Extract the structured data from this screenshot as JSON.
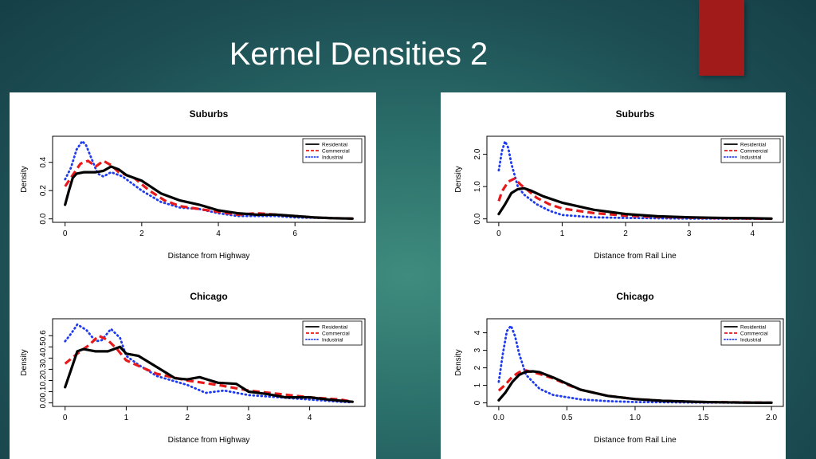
{
  "slide": {
    "title": "Kernel Densities 2"
  },
  "colors": {
    "residential": "#000000",
    "commercial": "#e8191a",
    "industrial": "#1f3bf0",
    "accent": "#a11b1b"
  },
  "chart_data": [
    {
      "type": "line",
      "title": "Suburbs",
      "xlabel": "Distance from Highway",
      "ylabel": "Density",
      "xlim": [
        0,
        7.5
      ],
      "ylim": [
        0,
        0.56
      ],
      "xticks": [
        0,
        2,
        4,
        6
      ],
      "xtick_labels": [
        "0",
        "2",
        "4",
        "6"
      ],
      "yticks": [
        0,
        0.2,
        0.4
      ],
      "ytick_labels": [
        "0.0",
        "0.2",
        "0.4"
      ],
      "legend": "top-right",
      "series": [
        {
          "name": "Residential",
          "style": "solid",
          "x": [
            0,
            0.1,
            0.2,
            0.3,
            0.5,
            0.8,
            1.0,
            1.2,
            1.4,
            1.6,
            2.0,
            2.5,
            3.0,
            3.5,
            4.0,
            4.5,
            5.0,
            5.5,
            6.0,
            6.5,
            7.0,
            7.5
          ],
          "y": [
            0.1,
            0.2,
            0.29,
            0.32,
            0.33,
            0.33,
            0.34,
            0.37,
            0.35,
            0.31,
            0.27,
            0.18,
            0.13,
            0.1,
            0.06,
            0.04,
            0.03,
            0.03,
            0.02,
            0.01,
            0.005,
            0.002
          ]
        },
        {
          "name": "Commercial",
          "style": "dashed",
          "x": [
            0,
            0.2,
            0.4,
            0.6,
            0.8,
            1.0,
            1.2,
            1.4,
            1.8,
            2.2,
            2.6,
            3.0,
            3.5,
            4.0,
            4.5,
            5.0,
            5.5,
            6.0,
            6.5,
            7.0,
            7.5
          ],
          "y": [
            0.23,
            0.31,
            0.39,
            0.41,
            0.37,
            0.41,
            0.38,
            0.33,
            0.29,
            0.2,
            0.13,
            0.09,
            0.07,
            0.05,
            0.03,
            0.04,
            0.03,
            0.02,
            0.01,
            0.005,
            0.002
          ]
        },
        {
          "name": "Industrial",
          "style": "dotted",
          "x": [
            0,
            0.15,
            0.3,
            0.45,
            0.55,
            0.7,
            0.85,
            1.0,
            1.2,
            1.5,
            2.0,
            2.5,
            3.0,
            3.5,
            4.0,
            4.5,
            5.0,
            5.5,
            6.0,
            7.0,
            7.5
          ],
          "y": [
            0.28,
            0.36,
            0.49,
            0.55,
            0.52,
            0.42,
            0.32,
            0.3,
            0.33,
            0.3,
            0.2,
            0.12,
            0.08,
            0.07,
            0.04,
            0.02,
            0.02,
            0.02,
            0.01,
            0.005,
            0.002
          ]
        }
      ]
    },
    {
      "type": "line",
      "title": "Suburbs",
      "xlabel": "Distance from Rail Line",
      "ylabel": "Density",
      "xlim": [
        0,
        4.3
      ],
      "ylim": [
        0,
        2.45
      ],
      "xticks": [
        0,
        1,
        2,
        3,
        4
      ],
      "xtick_labels": [
        "0",
        "1",
        "2",
        "3",
        "4"
      ],
      "yticks": [
        0,
        1,
        2
      ],
      "ytick_labels": [
        "0.0",
        "1.0",
        "2.0"
      ],
      "legend": "top-right",
      "series": [
        {
          "name": "Residential",
          "style": "solid",
          "x": [
            0,
            0.1,
            0.2,
            0.3,
            0.4,
            0.5,
            0.7,
            1.0,
            1.5,
            2.0,
            2.5,
            3.0,
            3.5,
            4.0,
            4.3
          ],
          "y": [
            0.15,
            0.45,
            0.8,
            0.92,
            0.95,
            0.88,
            0.7,
            0.5,
            0.28,
            0.15,
            0.08,
            0.05,
            0.03,
            0.02,
            0.01
          ]
        },
        {
          "name": "Commercial",
          "style": "dashed",
          "x": [
            0,
            0.05,
            0.15,
            0.25,
            0.35,
            0.45,
            0.6,
            0.8,
            1.0,
            1.5,
            2.0,
            2.5,
            3.0,
            3.5,
            4.0,
            4.3
          ],
          "y": [
            0.55,
            0.85,
            1.15,
            1.25,
            1.05,
            0.9,
            0.65,
            0.45,
            0.32,
            0.18,
            0.1,
            0.06,
            0.04,
            0.02,
            0.01,
            0.005
          ]
        },
        {
          "name": "Industrial",
          "style": "dotted",
          "x": [
            0,
            0.05,
            0.1,
            0.15,
            0.2,
            0.3,
            0.4,
            0.6,
            0.8,
            1.0,
            1.5,
            2.0,
            3.0,
            4.3
          ],
          "y": [
            1.5,
            2.1,
            2.4,
            2.2,
            1.7,
            1.0,
            0.75,
            0.45,
            0.25,
            0.12,
            0.05,
            0.03,
            0.01,
            0.003
          ]
        }
      ]
    },
    {
      "type": "line",
      "title": "Chicago",
      "xlabel": "Distance from Highway",
      "ylabel": "Density",
      "xlim": [
        0,
        4.7
      ],
      "ylim": [
        0,
        0.72
      ],
      "xticks": [
        0,
        1,
        2,
        3,
        4
      ],
      "xtick_labels": [
        "0",
        "1",
        "2",
        "3",
        "4"
      ],
      "yticks": [
        0,
        0.1,
        0.2,
        0.3,
        0.4,
        0.5,
        0.6
      ],
      "ytick_labels": [
        "0.0",
        "0.1",
        "0.2",
        "0.3",
        "0.4",
        "0.5",
        "0.6"
      ],
      "legend": "top-right",
      "series": [
        {
          "name": "Residential",
          "style": "solid",
          "x": [
            0,
            0.1,
            0.2,
            0.3,
            0.5,
            0.7,
            0.9,
            1.0,
            1.2,
            1.5,
            1.8,
            2.0,
            2.2,
            2.5,
            2.8,
            3.0,
            3.3,
            3.6,
            4.0,
            4.3,
            4.7
          ],
          "y": [
            0.14,
            0.3,
            0.46,
            0.48,
            0.46,
            0.46,
            0.5,
            0.44,
            0.42,
            0.32,
            0.22,
            0.21,
            0.23,
            0.18,
            0.17,
            0.1,
            0.08,
            0.05,
            0.05,
            0.03,
            0.01
          ]
        },
        {
          "name": "Commercial",
          "style": "dashed",
          "x": [
            0,
            0.2,
            0.4,
            0.55,
            0.7,
            0.85,
            1.0,
            1.2,
            1.5,
            2.0,
            2.5,
            3.0,
            3.5,
            4.0,
            4.5,
            4.7
          ],
          "y": [
            0.35,
            0.44,
            0.52,
            0.6,
            0.56,
            0.48,
            0.38,
            0.33,
            0.26,
            0.2,
            0.16,
            0.11,
            0.08,
            0.05,
            0.03,
            0.01
          ]
        },
        {
          "name": "Industrial",
          "style": "dotted",
          "x": [
            0,
            0.1,
            0.2,
            0.35,
            0.5,
            0.6,
            0.75,
            0.9,
            1.0,
            1.2,
            1.5,
            2.0,
            2.3,
            2.6,
            3.0,
            3.5,
            4.0,
            4.5,
            4.7
          ],
          "y": [
            0.55,
            0.62,
            0.7,
            0.65,
            0.55,
            0.56,
            0.66,
            0.58,
            0.42,
            0.34,
            0.24,
            0.16,
            0.09,
            0.11,
            0.07,
            0.05,
            0.03,
            0.01,
            0.005
          ]
        }
      ]
    },
    {
      "type": "line",
      "title": "Chicago",
      "xlabel": "Distance from Rail Line",
      "ylabel": "Density",
      "xlim": [
        0,
        2.0
      ],
      "ylim": [
        0,
        4.6
      ],
      "xticks": [
        0,
        0.5,
        1,
        1.5,
        2
      ],
      "xtick_labels": [
        "0.0",
        "0.5",
        "1.0",
        "1.5",
        "2.0"
      ],
      "yticks": [
        0,
        1,
        2,
        3,
        4
      ],
      "ytick_labels": [
        "0",
        "1",
        "2",
        "3",
        "4"
      ],
      "legend": "top-right",
      "series": [
        {
          "name": "Residential",
          "style": "solid",
          "x": [
            0,
            0.05,
            0.1,
            0.15,
            0.2,
            0.25,
            0.3,
            0.4,
            0.5,
            0.6,
            0.8,
            1.0,
            1.2,
            1.5,
            1.8,
            2.0
          ],
          "y": [
            0.15,
            0.6,
            1.2,
            1.6,
            1.78,
            1.8,
            1.75,
            1.45,
            1.1,
            0.75,
            0.4,
            0.22,
            0.12,
            0.05,
            0.02,
            0.01
          ]
        },
        {
          "name": "Commercial",
          "style": "dashed",
          "x": [
            0,
            0.05,
            0.1,
            0.15,
            0.2,
            0.3,
            0.4,
            0.5,
            0.6,
            0.8,
            1.0,
            1.2,
            1.5,
            2.0
          ],
          "y": [
            0.7,
            1.05,
            1.5,
            1.75,
            1.85,
            1.65,
            1.4,
            1.05,
            0.75,
            0.4,
            0.22,
            0.12,
            0.05,
            0.01
          ]
        },
        {
          "name": "Industrial",
          "style": "dotted",
          "x": [
            0,
            0.03,
            0.06,
            0.09,
            0.12,
            0.15,
            0.2,
            0.3,
            0.4,
            0.6,
            0.8,
            1.0,
            1.5,
            2.0
          ],
          "y": [
            1.2,
            2.8,
            4.1,
            4.4,
            3.8,
            2.8,
            1.6,
            0.8,
            0.45,
            0.2,
            0.1,
            0.05,
            0.02,
            0.005
          ]
        }
      ]
    }
  ]
}
